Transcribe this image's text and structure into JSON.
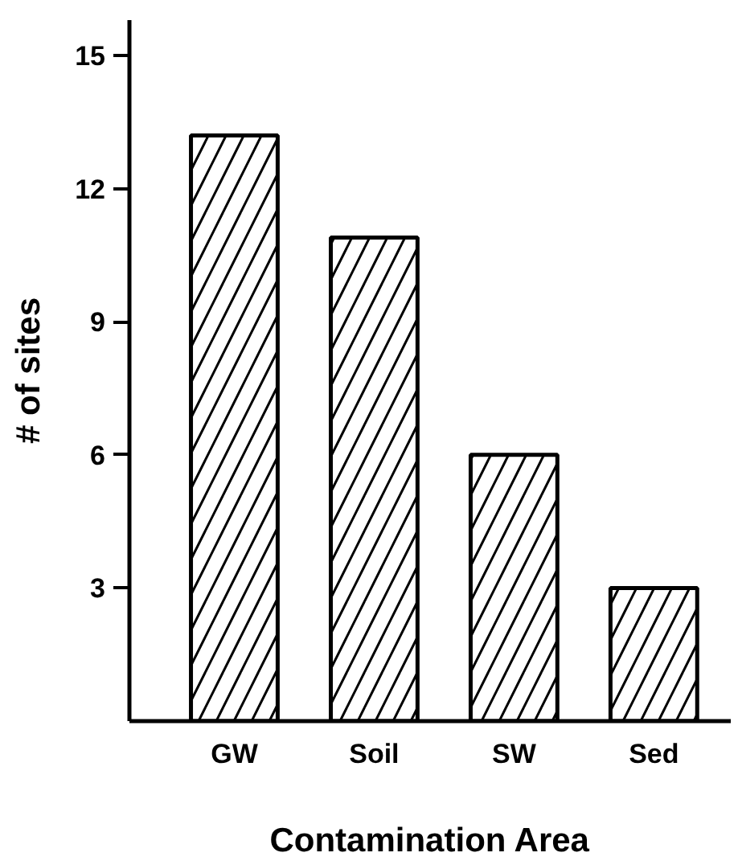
{
  "chart_data": {
    "type": "bar",
    "xlabel": "Contamination Area",
    "ylabel": "# of sites",
    "categories": [
      "GW",
      "Soil",
      "SW",
      "Sed"
    ],
    "values": [
      13.2,
      10.9,
      6,
      3
    ],
    "color": "#ffffff",
    "ylim": [
      0,
      15.8
    ],
    "yticks": [
      3,
      6,
      9,
      12,
      15
    ],
    "grid": false
  }
}
